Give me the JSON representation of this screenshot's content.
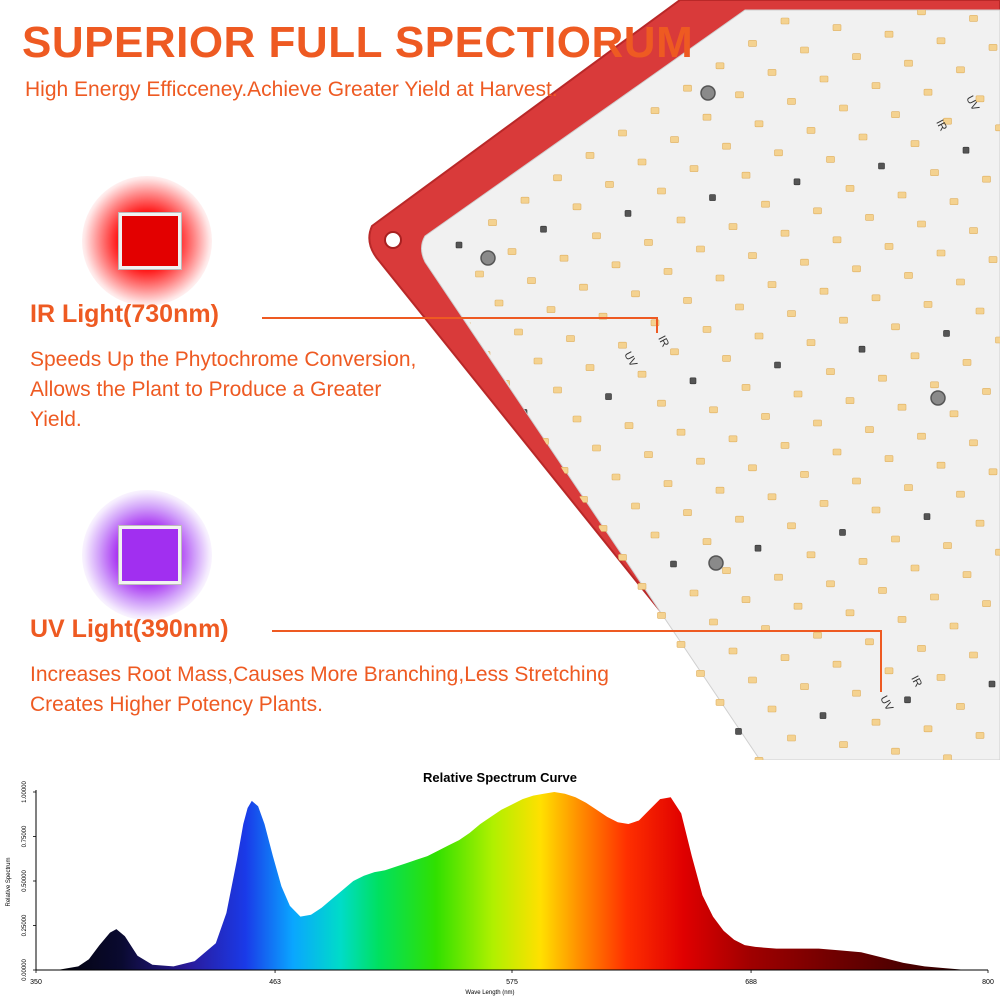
{
  "header": {
    "title": "SUPERIOR FULL SPECTIORUM",
    "subtitle": "High Energy Efficceney.Achieve Greater Yield at Harvest."
  },
  "features": {
    "ir": {
      "title": "IR Light(730nm)",
      "line1": "Speeds Up the Phytochrome Conversion,",
      "line2": "Allows the Plant to Produce a Greater",
      "line3": "Yield.",
      "chip_color": "#e30000"
    },
    "uv": {
      "title": "UV Light(390nm)",
      "line1": "Increases Root Mass,Causes More Branching,Less Stretching",
      "line2": "Creates Higher Potency Plants.",
      "chip_color": "#a12ff0"
    }
  },
  "panel": {
    "board_color": "#d93a3a",
    "label_ir": "IR",
    "label_uv": "UV"
  },
  "accent_color": "#ee5a22",
  "chart_data": {
    "type": "area",
    "title": "Relative Spectrum Curve",
    "xlabel": "Wave Length (nm)",
    "ylabel": "Relative Spectrum",
    "x_ticks": [
      "350",
      "463",
      "575",
      "688",
      "800"
    ],
    "y_ticks": [
      "0.00000",
      "0.25000",
      "0.50000",
      "0.75000",
      "1.00000"
    ],
    "xlim": [
      350,
      800
    ],
    "ylim": [
      0,
      1
    ],
    "series": [
      {
        "x": [
          350,
          360,
          370,
          375,
          380,
          385,
          388,
          392,
          398,
          405,
          415,
          425,
          435,
          440,
          445,
          448,
          450,
          452,
          455,
          458,
          462,
          466,
          470,
          475,
          480,
          485,
          490,
          495,
          500,
          505,
          510,
          515,
          520,
          525,
          530,
          535,
          540,
          545,
          550,
          555,
          560,
          565,
          570,
          575,
          580,
          585,
          590,
          595,
          600,
          605,
          610,
          615,
          620,
          625,
          630,
          635,
          640,
          645,
          650,
          655,
          660,
          665,
          670,
          675,
          680,
          685,
          690,
          700,
          710,
          720,
          730,
          740,
          750,
          760,
          770,
          780,
          790,
          800
        ],
        "y": [
          0.0,
          0.0,
          0.02,
          0.06,
          0.14,
          0.21,
          0.23,
          0.19,
          0.08,
          0.03,
          0.02,
          0.05,
          0.15,
          0.32,
          0.62,
          0.82,
          0.91,
          0.95,
          0.92,
          0.82,
          0.64,
          0.47,
          0.36,
          0.3,
          0.31,
          0.35,
          0.4,
          0.45,
          0.5,
          0.53,
          0.55,
          0.56,
          0.58,
          0.6,
          0.62,
          0.64,
          0.67,
          0.7,
          0.73,
          0.77,
          0.82,
          0.86,
          0.9,
          0.93,
          0.96,
          0.98,
          0.99,
          1.0,
          0.99,
          0.97,
          0.94,
          0.9,
          0.86,
          0.83,
          0.82,
          0.84,
          0.9,
          0.96,
          0.97,
          0.88,
          0.64,
          0.42,
          0.3,
          0.22,
          0.17,
          0.14,
          0.13,
          0.12,
          0.12,
          0.12,
          0.11,
          0.1,
          0.07,
          0.04,
          0.02,
          0.01,
          0.0,
          0.0
        ]
      }
    ],
    "grid": false,
    "legend": "none"
  }
}
